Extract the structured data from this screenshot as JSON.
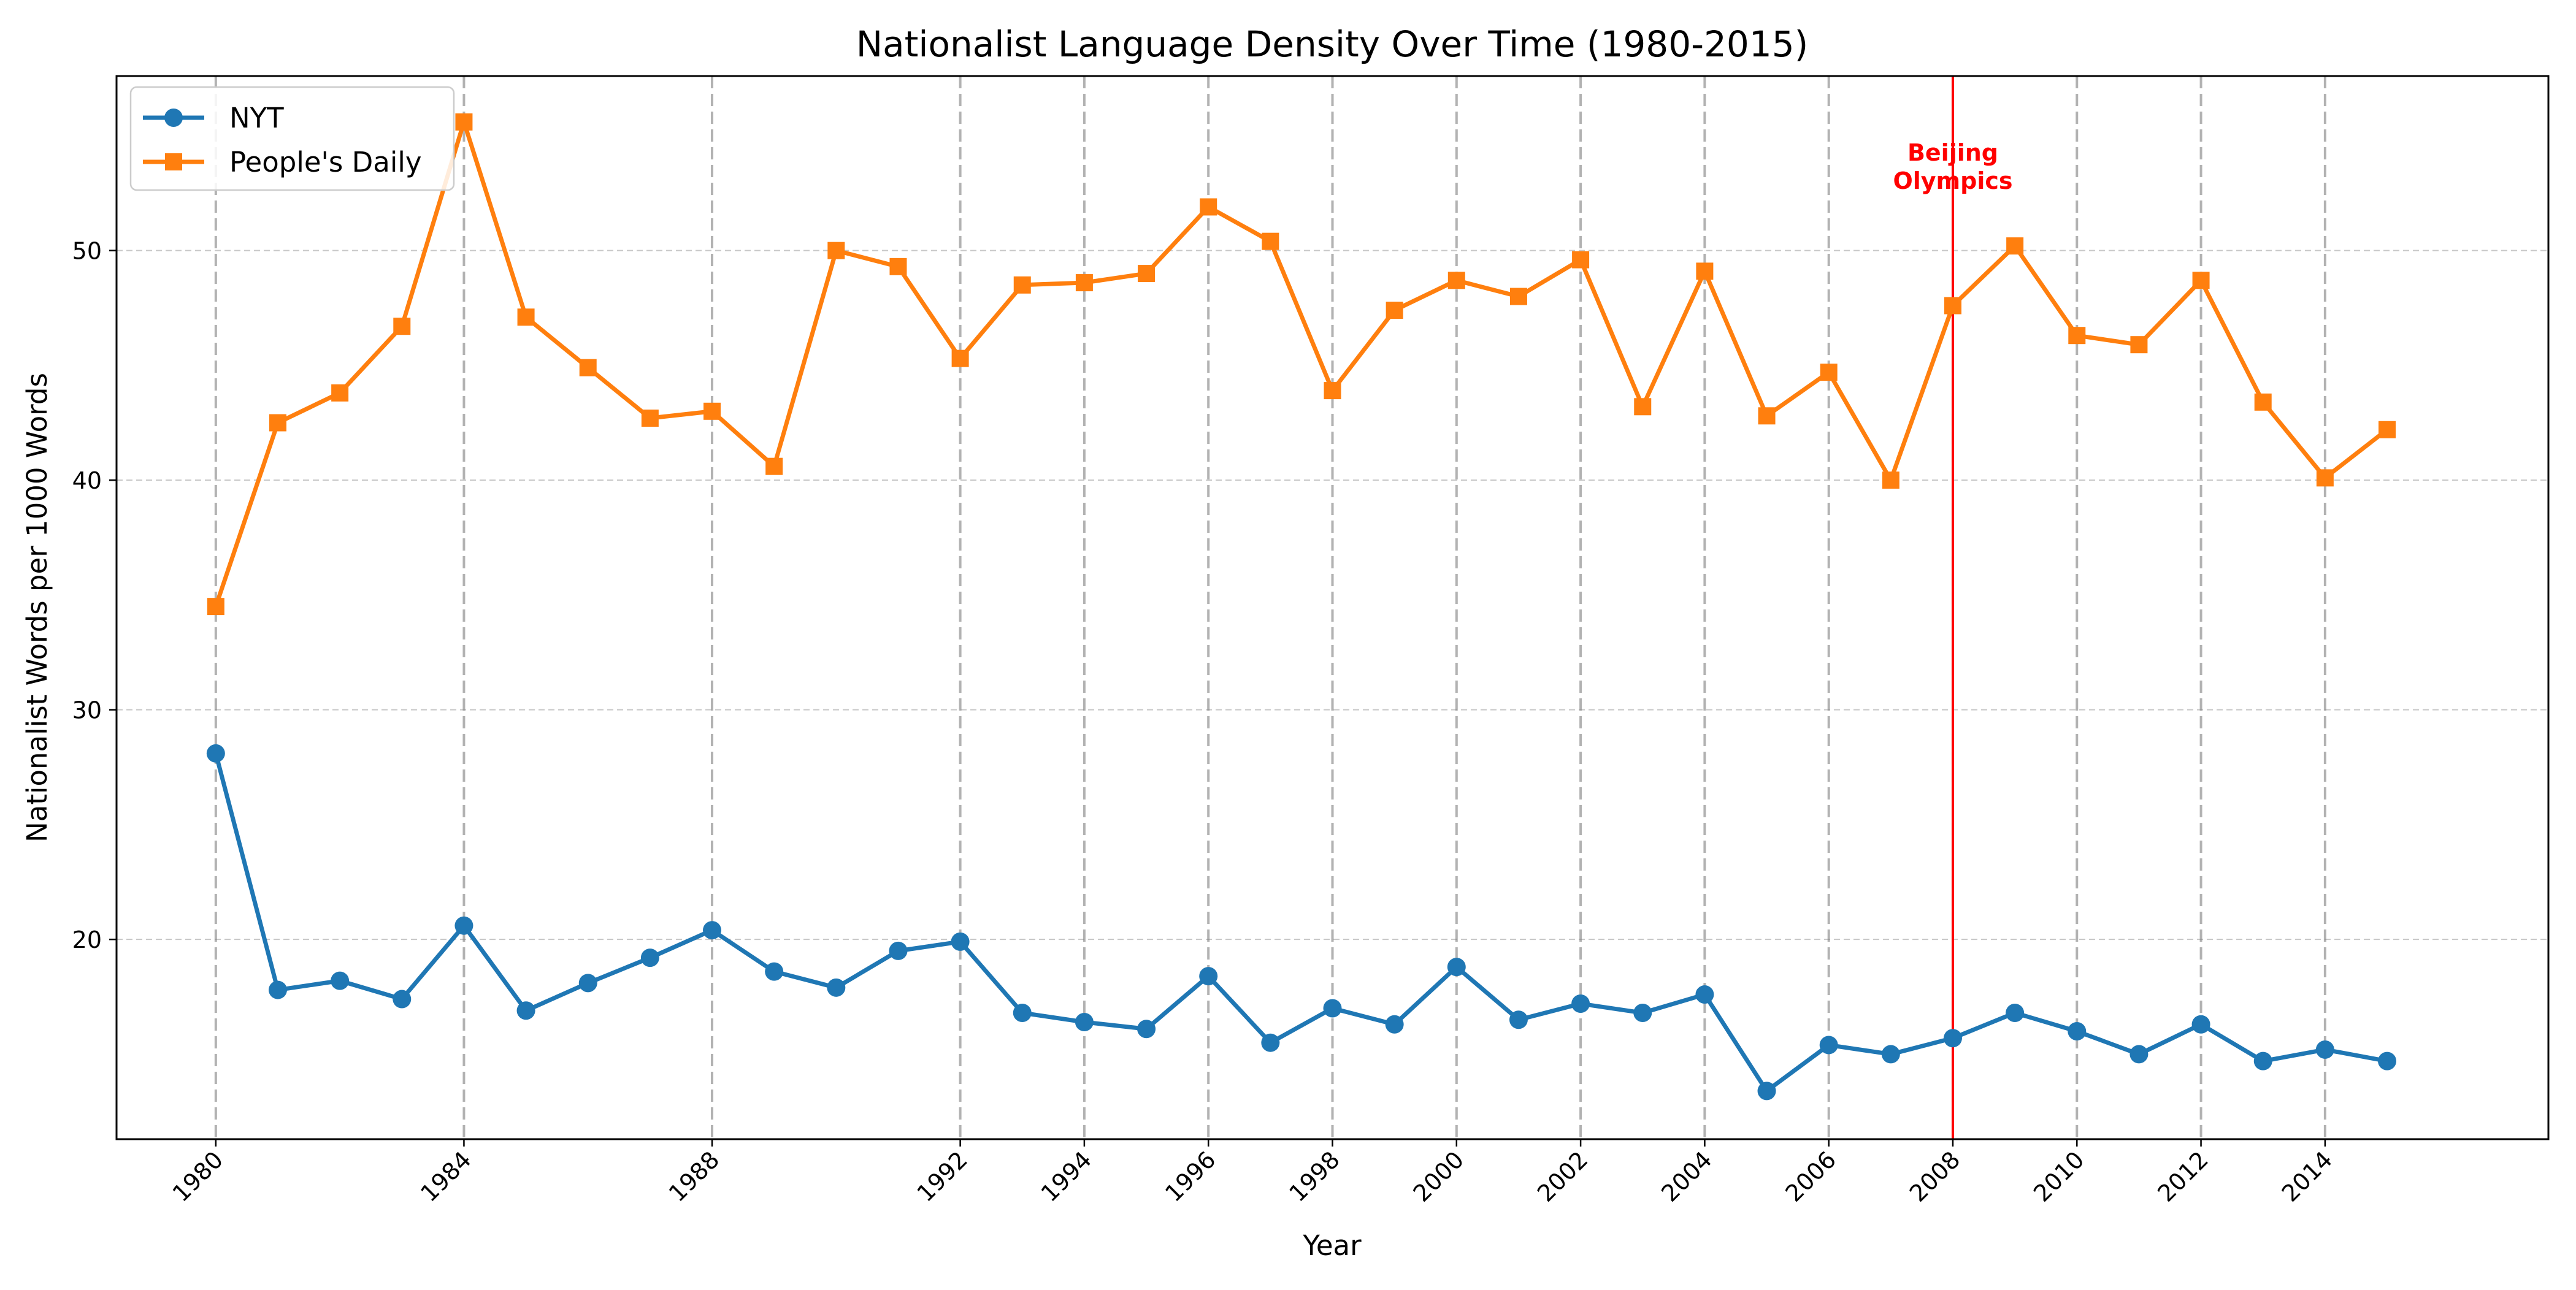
{
  "chart_data": {
    "type": "line",
    "title": "Nationalist Language Density Over Time (1980-2015)",
    "xlabel": "Year",
    "ylabel": "Nationalist Words per 1000 Words",
    "xlim": [
      1978.4,
      2017.6
    ],
    "ylim": [
      11.3,
      57.6
    ],
    "x_ticks": [
      1980,
      1984,
      1988,
      1992,
      1994,
      1996,
      1998,
      2000,
      2002,
      2004,
      2006,
      2008,
      2010,
      2012,
      2014
    ],
    "y_ticks": [
      20,
      30,
      40,
      50
    ],
    "grid": true,
    "legend_position": "top-left",
    "x": [
      1980,
      1981,
      1982,
      1983,
      1984,
      1985,
      1986,
      1987,
      1988,
      1989,
      1990,
      1991,
      1992,
      1993,
      1994,
      1995,
      1996,
      1997,
      1998,
      1999,
      2000,
      2001,
      2002,
      2003,
      2004,
      2005,
      2006,
      2007,
      2008,
      2009,
      2010,
      2011,
      2012,
      2013,
      2014,
      2015
    ],
    "series": [
      {
        "name": "NYT",
        "color": "#1f77b4",
        "marker": "circle",
        "values": [
          28.1,
          17.8,
          18.2,
          17.4,
          20.6,
          16.9,
          18.1,
          19.2,
          20.4,
          18.6,
          17.9,
          19.5,
          19.9,
          16.8,
          16.4,
          16.1,
          18.4,
          15.5,
          17.0,
          16.3,
          18.8,
          16.5,
          17.2,
          16.8,
          17.6,
          13.4,
          15.4,
          15.0,
          15.7,
          16.8,
          16.0,
          15.0,
          16.3,
          14.7,
          15.2,
          14.7
        ]
      },
      {
        "name": "People's Daily",
        "color": "#ff7f0e",
        "marker": "square",
        "values": [
          34.5,
          42.5,
          43.8,
          46.7,
          55.6,
          47.1,
          44.9,
          42.7,
          43.0,
          40.6,
          50.0,
          49.3,
          45.3,
          48.5,
          48.6,
          49.0,
          51.9,
          50.4,
          43.9,
          47.4,
          48.7,
          48.0,
          49.6,
          43.2,
          49.1,
          42.8,
          44.7,
          40.0,
          47.6,
          50.2,
          46.3,
          45.9,
          48.7,
          43.4,
          40.1,
          42.2
        ]
      }
    ],
    "annotation": {
      "year": 2008,
      "text_lines": [
        "Beijing",
        "Olympics"
      ],
      "color": "#ff0000"
    }
  }
}
